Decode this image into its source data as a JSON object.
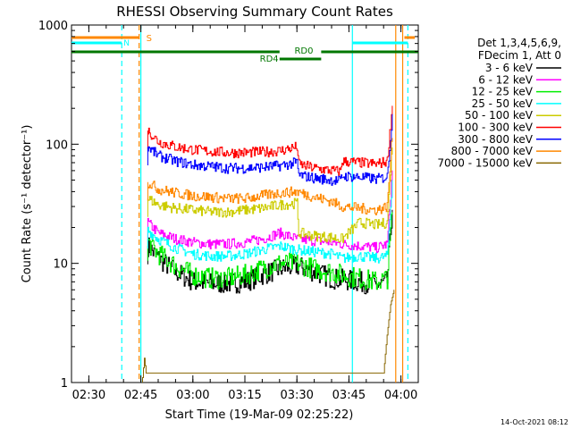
{
  "chart_data": {
    "type": "line",
    "title": "RHESSI Observing Summary Count Rates",
    "xlabel": "Start Time (19-Mar-09 02:25:22)",
    "ylabel": "Count Rate (s⁻¹ detector⁻¹)",
    "yscale": "log",
    "ylim": [
      1,
      1000
    ],
    "xlim_minutes_after_0225": [
      0,
      100
    ],
    "x_ticks": [
      {
        "label": "02:30",
        "t": 5
      },
      {
        "label": "02:45",
        "t": 20
      },
      {
        "label": "03:00",
        "t": 35
      },
      {
        "label": "03:15",
        "t": 50
      },
      {
        "label": "03:30",
        "t": 65
      },
      {
        "label": "03:45",
        "t": 80
      },
      {
        "label": "04:00",
        "t": 95
      }
    ],
    "y_ticks": [
      {
        "label": "1",
        "v": 1
      },
      {
        "label": "10",
        "v": 10
      },
      {
        "label": "100",
        "v": 100
      },
      {
        "label": "1000",
        "v": 1000
      }
    ],
    "legend_position": "right",
    "legend_header": [
      "Det 1,3,4,5,6,9,",
      "FDecim 1, Att 0"
    ],
    "series": [
      {
        "name": "3 - 6 keV",
        "color": "#000000",
        "t": [
          22,
          25,
          30,
          35,
          40,
          45,
          50,
          55,
          60,
          65,
          70,
          75,
          78,
          83,
          88,
          91,
          92.5
        ],
        "v": [
          14,
          11,
          8.5,
          7,
          6.8,
          6.8,
          7,
          8,
          9,
          9.5,
          8.5,
          7.5,
          7.3,
          7,
          6.5,
          7,
          30
        ]
      },
      {
        "name": "6 - 12 keV",
        "color": "#ff00ff",
        "t": [
          22,
          25,
          30,
          35,
          40,
          45,
          50,
          55,
          60,
          65,
          70,
          75,
          78,
          83,
          88,
          91,
          92.5
        ],
        "v": [
          22,
          18,
          16,
          15,
          14.5,
          14.5,
          15,
          16,
          18,
          16,
          15.5,
          15,
          14.5,
          14,
          13.5,
          14.5,
          60
        ]
      },
      {
        "name": "12 - 25 keV",
        "color": "#00ee00",
        "t": [
          22,
          25,
          30,
          35,
          40,
          45,
          50,
          55,
          60,
          65,
          70,
          75,
          78,
          83,
          88,
          91,
          92.5
        ],
        "v": [
          15,
          12,
          9.5,
          8,
          7.5,
          7.5,
          8,
          9,
          10,
          10,
          9,
          8.5,
          8,
          7.5,
          7,
          7.5,
          28
        ]
      },
      {
        "name": "25 - 50 keV",
        "color": "#00ffff",
        "t": [
          22,
          25,
          30,
          35,
          40,
          45,
          50,
          55,
          60,
          65,
          70,
          75,
          78,
          83,
          88,
          91,
          92.5
        ],
        "v": [
          19,
          16,
          13.5,
          12,
          11.5,
          11.5,
          12,
          13,
          14,
          13,
          12.5,
          12,
          11,
          11.5,
          11,
          11.5,
          50
        ]
      },
      {
        "name": "50 - 100 keV",
        "color": "#cccc00",
        "t": [
          22,
          25,
          30,
          35,
          40,
          45,
          50,
          55,
          60,
          65,
          65.5,
          70,
          75,
          78,
          83,
          88,
          91,
          92.5
        ],
        "v": [
          35,
          31,
          29,
          28,
          27,
          27,
          28,
          29,
          31,
          32,
          18,
          17,
          16.5,
          16,
          22,
          21,
          22,
          100
        ]
      },
      {
        "name": "100 - 300 keV",
        "color": "#ff0000",
        "t": [
          22,
          25,
          30,
          35,
          40,
          45,
          50,
          55,
          60,
          65,
          65.5,
          70,
          75,
          77.5,
          78,
          83,
          88,
          91,
          92.5
        ],
        "v": [
          130,
          105,
          95,
          90,
          87,
          85,
          85,
          86,
          88,
          95,
          68,
          63,
          60,
          59,
          72,
          70,
          68,
          72,
          210
        ]
      },
      {
        "name": "300 - 800 keV",
        "color": "#0000ff",
        "t": [
          22,
          25,
          30,
          35,
          40,
          45,
          50,
          55,
          60,
          65,
          65.5,
          70,
          75,
          77.5,
          78,
          83,
          88,
          91,
          92.5
        ],
        "v": [
          95,
          80,
          72,
          67,
          65,
          63,
          63,
          64,
          66,
          70,
          55,
          52,
          50,
          49,
          54,
          53,
          51,
          53,
          170
        ]
      },
      {
        "name": "800 - 7000 keV",
        "color": "#ff8800",
        "t": [
          22,
          25,
          30,
          35,
          40,
          45,
          50,
          55,
          60,
          65,
          70,
          75,
          78,
          83,
          88,
          91,
          92.5
        ],
        "v": [
          48,
          42,
          39,
          37,
          36,
          35,
          35,
          37,
          39,
          40,
          36,
          33,
          30,
          29,
          28,
          30,
          120
        ]
      },
      {
        "name": "7000 - 15000 keV",
        "color": "#886600",
        "t": [
          20.5,
          21,
          21.5,
          90,
          91,
          92,
          93
        ],
        "v": [
          1.1,
          1.6,
          1.2,
          1.2,
          2.5,
          4.5,
          6
        ]
      }
    ],
    "markers": [
      {
        "label": "S",
        "color": "#ff8800",
        "t_start": 0,
        "t_end": 19.5
      },
      {
        "label": "N",
        "color": "#00ffff",
        "t_start": 0,
        "t_end": 14.5
      },
      {
        "label": "",
        "color": "#00ffff",
        "t_start": 81,
        "t_end": 97
      }
    ],
    "attenuator_states": [
      {
        "label": "RD0",
        "t_start": 0,
        "t_end": 100
      },
      {
        "label": "RD4",
        "t_start": 60,
        "t_end": 72
      }
    ],
    "vertical_lines": [
      {
        "t": 14.5,
        "color": "#00ffff",
        "style": "dashed"
      },
      {
        "t": 20,
        "color": "#00ffff",
        "style": "solid"
      },
      {
        "t": 19.5,
        "color": "#ff8800",
        "style": "dashed"
      },
      {
        "t": 81,
        "color": "#00ffff",
        "style": "solid"
      },
      {
        "t": 93.5,
        "color": "#ff8800",
        "style": "solid"
      },
      {
        "t": 97,
        "color": "#00ffff",
        "style": "dashed"
      },
      {
        "t": 95.5,
        "color": "#ff8800",
        "style": "solid"
      }
    ]
  },
  "footer_date": "14-Oct-2021 08:12"
}
